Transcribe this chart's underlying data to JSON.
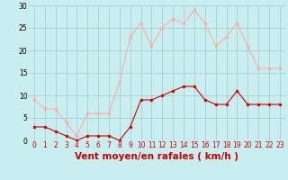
{
  "hours": [
    0,
    1,
    2,
    3,
    4,
    5,
    6,
    7,
    8,
    9,
    10,
    11,
    12,
    13,
    14,
    15,
    16,
    17,
    18,
    19,
    20,
    21,
    22,
    23
  ],
  "vent_moyen": [
    3,
    3,
    2,
    1,
    0,
    1,
    1,
    1,
    0,
    3,
    9,
    9,
    10,
    11,
    12,
    12,
    9,
    8,
    8,
    11,
    8,
    8,
    8,
    8
  ],
  "rafales": [
    9,
    7,
    7,
    4,
    1,
    6,
    6,
    6,
    13,
    23,
    26,
    21,
    25,
    27,
    26,
    29,
    26,
    21,
    23,
    26,
    21,
    16,
    16,
    16
  ],
  "color_moyen": "#cc0000",
  "color_rafales": "#ffaaaa",
  "bg_color": "#c8eef0",
  "grid_color": "#aacccc",
  "xlabel": "Vent moyen/en rafales ( km/h )",
  "ylim": [
    0,
    30
  ],
  "xlim_min": -0.5,
  "xlim_max": 23.5,
  "yticks": [
    0,
    5,
    10,
    15,
    20,
    25,
    30
  ],
  "xticks": [
    0,
    1,
    2,
    3,
    4,
    5,
    6,
    7,
    8,
    9,
    10,
    11,
    12,
    13,
    14,
    15,
    16,
    17,
    18,
    19,
    20,
    21,
    22,
    23
  ],
  "tick_fontsize": 5.5,
  "xlabel_fontsize": 7.5,
  "marker_size": 2.0,
  "linewidth": 0.8
}
